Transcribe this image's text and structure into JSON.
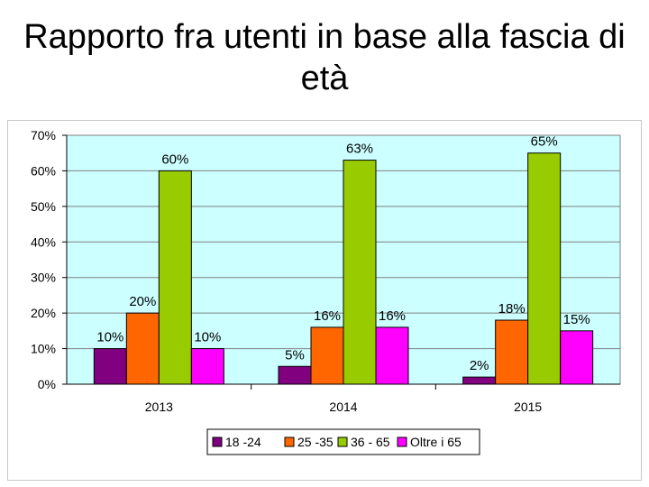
{
  "title": "Rapporto fra utenti in base alla fascia di età",
  "chart_data": {
    "type": "bar",
    "title": "Rapporto fra utenti in base alla fascia di età",
    "categories": [
      "2013",
      "2014",
      "2015"
    ],
    "series": [
      {
        "name": "18 -24",
        "values": [
          10,
          5,
          2
        ],
        "labels": [
          "10%",
          "5%",
          "2%"
        ],
        "color": "#800080"
      },
      {
        "name": "25 -35",
        "values": [
          20,
          16,
          18
        ],
        "labels": [
          "20%",
          "16%",
          "18%"
        ],
        "color": "#ff6600"
      },
      {
        "name": "36 - 65",
        "values": [
          60,
          63,
          65
        ],
        "labels": [
          "60%",
          "63%",
          "65%"
        ],
        "color": "#99cc00"
      },
      {
        "name": "Oltre i 65",
        "values": [
          10,
          16,
          15
        ],
        "labels": [
          "10%",
          "16%",
          "15%"
        ],
        "color": "#ff00ff"
      }
    ],
    "yticks": [
      "0%",
      "10%",
      "20%",
      "30%",
      "40%",
      "50%",
      "60%",
      "70%"
    ],
    "ylim": [
      0,
      70
    ],
    "plot_background": "#ccffff",
    "grid": true,
    "legend_position": "bottom"
  }
}
